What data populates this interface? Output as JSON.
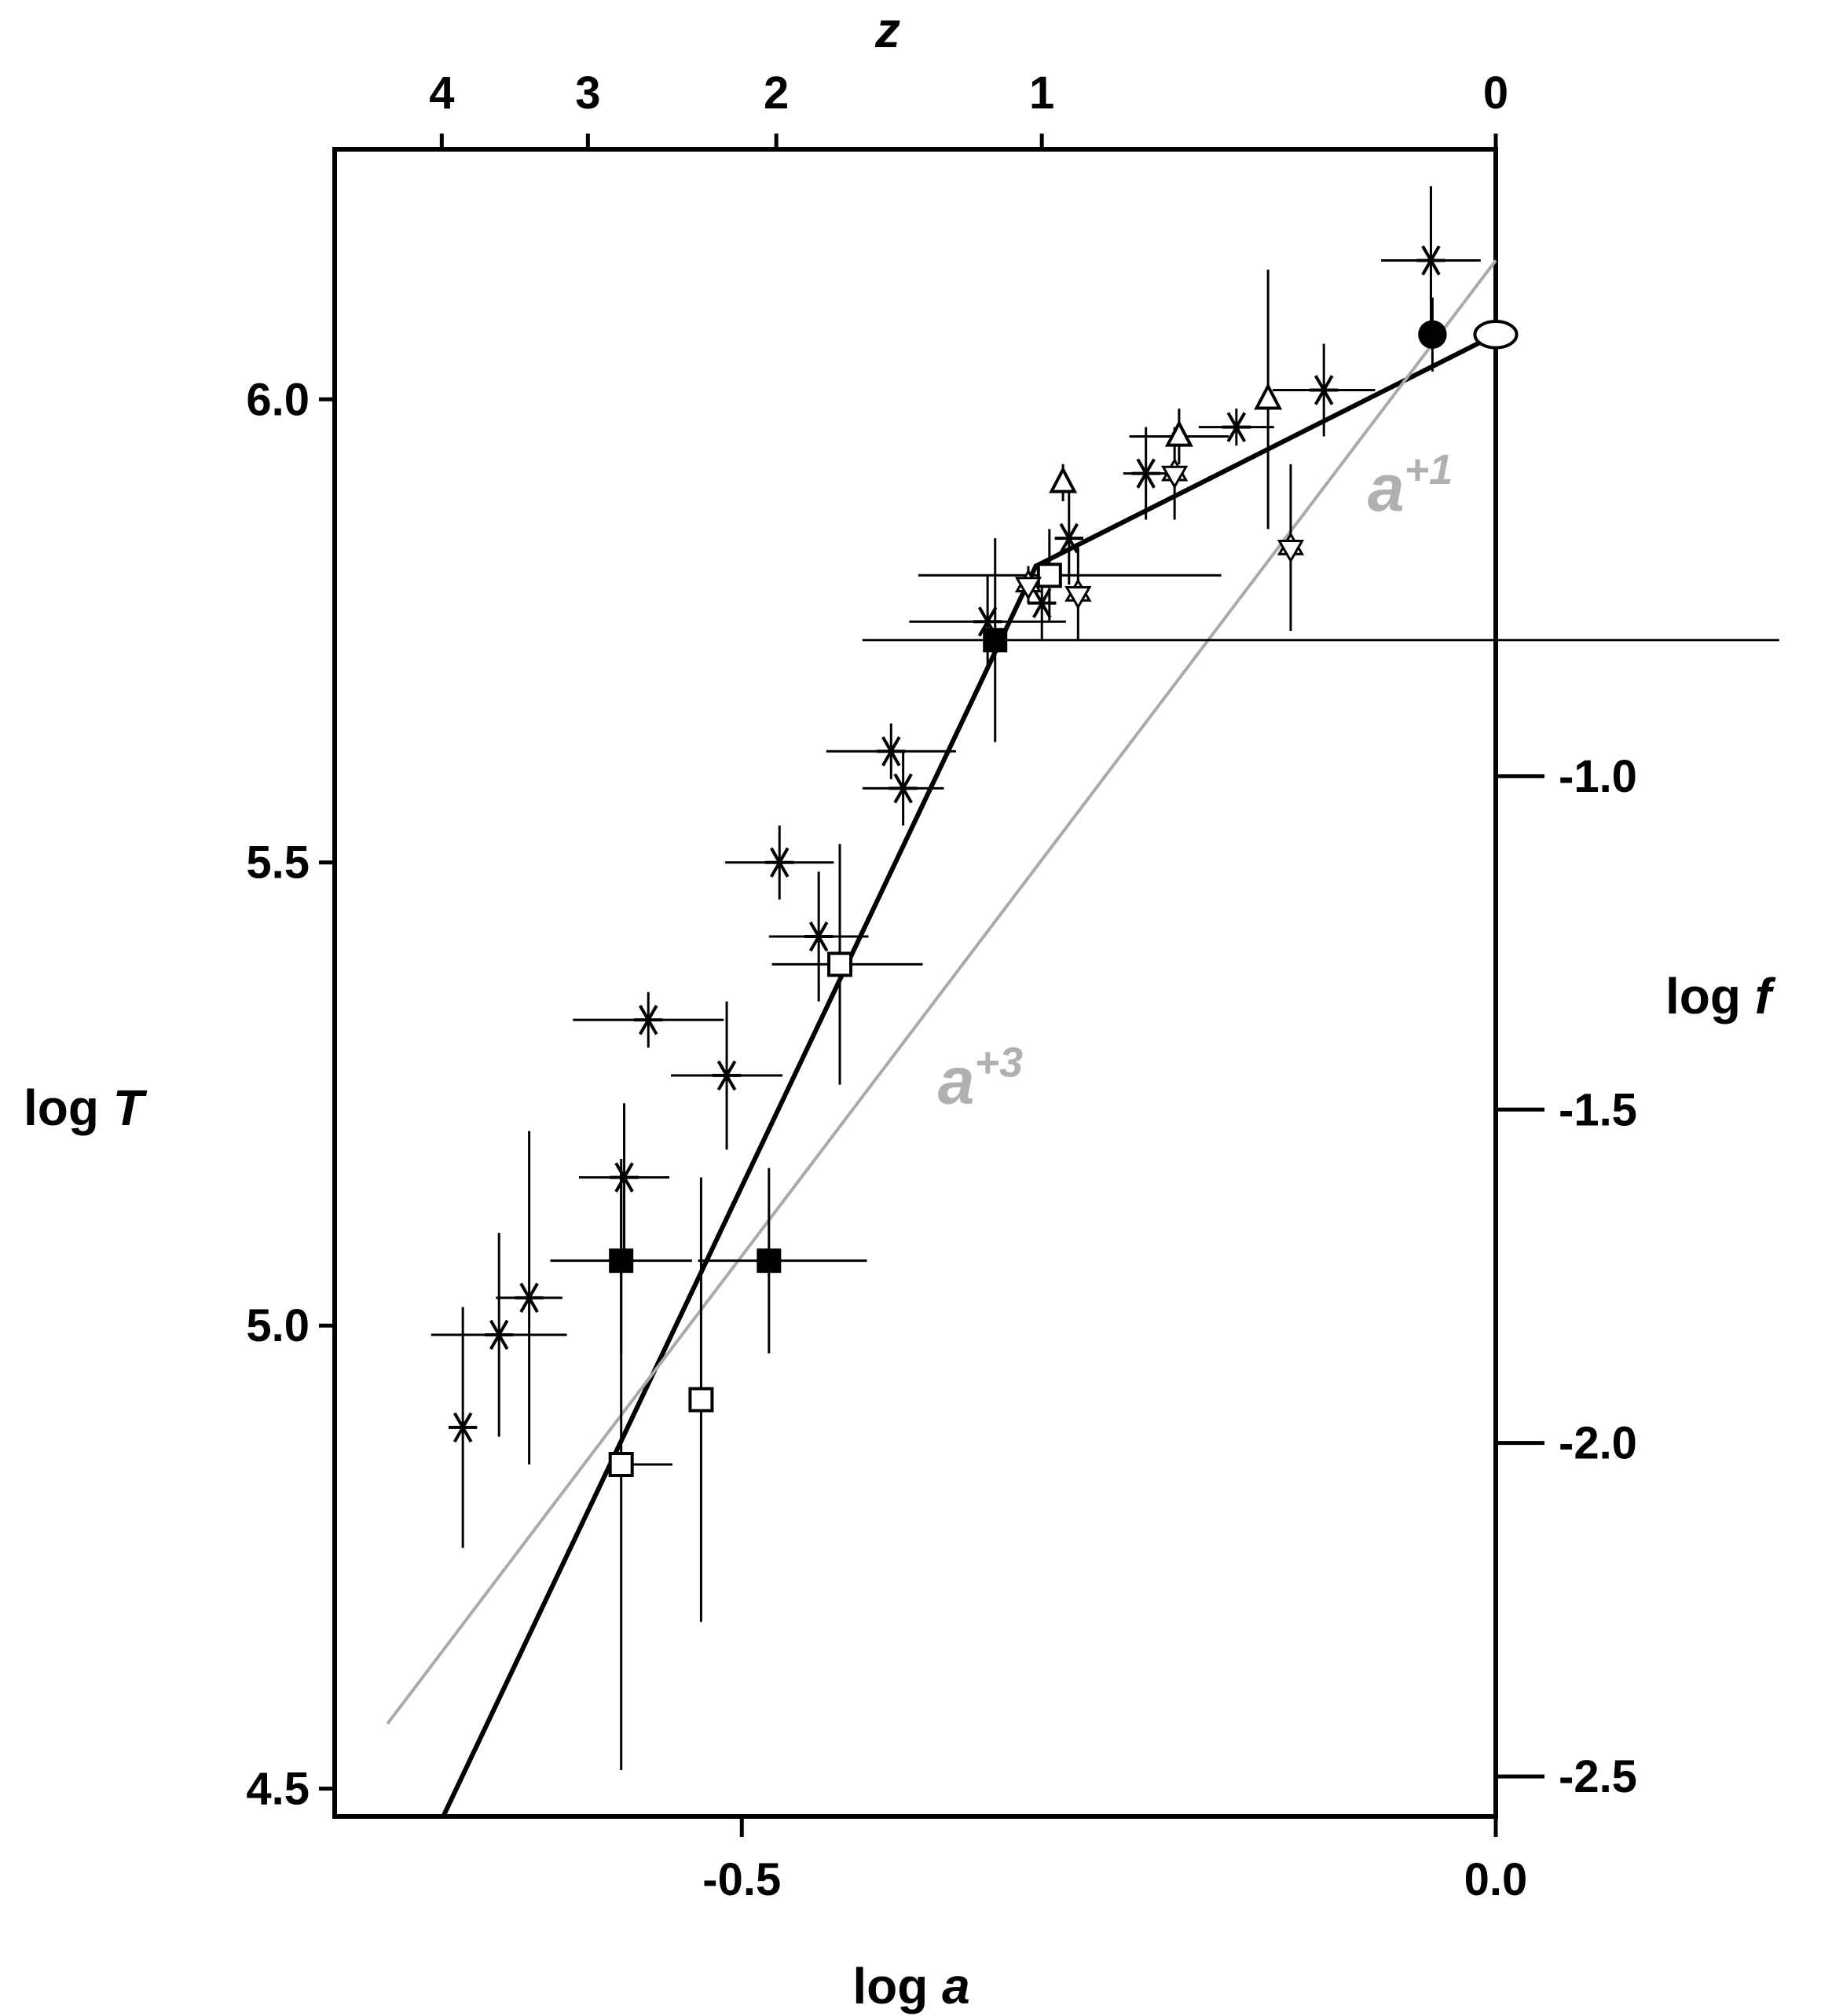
{
  "chart_data": {
    "type": "scatter",
    "title": "",
    "xlabel": {
      "text": "log ",
      "var": "a"
    },
    "ylabel": {
      "text": "log ",
      "var": "T"
    },
    "x2label": {
      "text": "",
      "var": "z"
    },
    "y2label": {
      "text": "log ",
      "var": "f"
    },
    "xlim": [
      -0.77,
      0.0
    ],
    "ylim": [
      4.47,
      6.27
    ],
    "y2lim": [
      -2.56,
      -0.06
    ],
    "x_ticks": [
      {
        "value": -0.5,
        "label": "-0.5"
      },
      {
        "value": 0.0,
        "label": "0.0"
      }
    ],
    "y_ticks": [
      {
        "value": 4.5,
        "label": "4.5"
      },
      {
        "value": 5.0,
        "label": "5.0"
      },
      {
        "value": 5.5,
        "label": "5.5"
      },
      {
        "value": 6.0,
        "label": "6.0"
      }
    ],
    "y2_ticks": [
      {
        "value": -1.0,
        "label": "-1.0"
      },
      {
        "value": -1.5,
        "label": "-1.5"
      },
      {
        "value": -2.0,
        "label": "-2.0"
      },
      {
        "value": -2.5,
        "label": "-2.5"
      }
    ],
    "x2_ticks": [
      {
        "value": 4,
        "label": "4"
      },
      {
        "value": 3,
        "label": "3"
      },
      {
        "value": 2,
        "label": "2"
      },
      {
        "value": 1,
        "label": "1"
      },
      {
        "value": 0,
        "label": "0"
      }
    ],
    "grid": false,
    "lines": [
      {
        "id": "black-fit",
        "color": "#000000",
        "points": [
          [
            -0.698,
            4.47
          ],
          [
            -0.305,
            5.82
          ],
          [
            0.0,
            6.07
          ]
        ]
      },
      {
        "id": "gray-fit",
        "color": "#aaaaaa",
        "points": [
          [
            -0.735,
            4.57
          ],
          [
            0.0,
            6.15
          ]
        ]
      }
    ],
    "annotations": [
      {
        "base": "a",
        "exp": "+3",
        "x": -0.37,
        "y": 5.24,
        "color": "#b0b0b0"
      },
      {
        "base": "a",
        "exp": "+1",
        "x": -0.085,
        "y": 5.88,
        "color": "#b0b0b0"
      }
    ],
    "series": [
      {
        "marker": "asterisk",
        "points": [
          {
            "x": -0.685,
            "y": 4.89,
            "xerr": [
              0,
              0
            ],
            "yerr": [
              0.13,
              0.13
            ]
          },
          {
            "x": -0.661,
            "y": 4.99,
            "xerr": [
              0.045,
              0.045
            ],
            "yerr": [
              0.11,
              0.11
            ]
          },
          {
            "x": -0.641,
            "y": 5.03,
            "xerr": [
              0.022,
              0.022
            ],
            "yerr": [
              0.18,
              0.18
            ]
          },
          {
            "x": -0.578,
            "y": 5.16,
            "xerr": [
              0.03,
              0.03
            ],
            "yerr": [
              0.08,
              0.08
            ]
          },
          {
            "x": -0.562,
            "y": 5.33,
            "xerr": [
              0.05,
              0.05
            ],
            "yerr": [
              0.03,
              0.03
            ]
          },
          {
            "x": -0.51,
            "y": 5.27,
            "xerr": [
              0.037,
              0.037
            ],
            "yerr": [
              0.08,
              0.08
            ]
          },
          {
            "x": -0.475,
            "y": 5.5,
            "xerr": [
              0.036,
              0.036
            ],
            "yerr": [
              0.04,
              0.04
            ]
          },
          {
            "x": -0.449,
            "y": 5.42,
            "xerr": [
              0.033,
              0.033
            ],
            "yerr": [
              0.07,
              0.07
            ]
          },
          {
            "x": -0.401,
            "y": 5.62,
            "xerr": [
              0.043,
              0.043
            ],
            "yerr": [
              0.03,
              0.03
            ]
          },
          {
            "x": -0.393,
            "y": 5.58,
            "xerr": [
              0.027,
              0.027
            ],
            "yerr": [
              0.04,
              0.04
            ]
          },
          {
            "x": -0.337,
            "y": 5.76,
            "xerr": [
              0.052,
              0.052
            ],
            "yerr": [
              0.05,
              0.05
            ]
          },
          {
            "x": -0.301,
            "y": 5.78,
            "xerr": [
              0,
              0
            ],
            "yerr": [
              0.04,
              0.04
            ]
          },
          {
            "x": -0.283,
            "y": 5.85,
            "xerr": [
              0,
              0
            ],
            "yerr": [
              0.05,
              0.05
            ]
          },
          {
            "x": -0.232,
            "y": 5.92,
            "xerr": [
              0.015,
              0.015
            ],
            "yerr": [
              0.05,
              0.05
            ]
          },
          {
            "x": -0.172,
            "y": 5.97,
            "xerr": [
              0.025,
              0.025
            ],
            "yerr": [
              0.02,
              0.02
            ]
          },
          {
            "x": -0.114,
            "y": 6.01,
            "xerr": [
              0.034,
              0.034
            ],
            "yerr": [
              0.05,
              0.05
            ]
          },
          {
            "x": -0.043,
            "y": 6.15,
            "xerr": [
              0.033,
              0.033
            ],
            "yerr": [
              0.08,
              0.08
            ]
          }
        ]
      },
      {
        "marker": "square-filled",
        "points": [
          {
            "x": -0.58,
            "y": 5.07,
            "xerr": [
              0.047,
              0.047
            ],
            "yerr": [
              0.1,
              0.1
            ]
          },
          {
            "x": -0.482,
            "y": 5.07,
            "xerr": [
              0.047,
              0.065
            ],
            "yerr": [
              0.1,
              0.1
            ]
          },
          {
            "x": -0.332,
            "y": 5.74,
            "xerr": [
              0.088,
              0.52
            ],
            "yerr": [
              0.11,
              0.11
            ]
          }
        ]
      },
      {
        "marker": "square-open",
        "points": [
          {
            "x": -0.58,
            "y": 4.85,
            "xerr": [
              0,
              0.034
            ],
            "yerr": [
              0.33,
              0.33
            ]
          },
          {
            "x": -0.527,
            "y": 4.92,
            "xerr": [
              0,
              0
            ],
            "yerr": [
              0.24,
              0.24
            ]
          },
          {
            "x": -0.435,
            "y": 5.39,
            "xerr": [
              0.045,
              0.055
            ],
            "yerr": [
              0.13,
              0.13
            ]
          },
          {
            "x": -0.296,
            "y": 5.81,
            "xerr": [
              0.087,
              0.114
            ],
            "yerr": [
              0.05,
              0.05
            ]
          }
        ]
      },
      {
        "marker": "star-open",
        "points": [
          {
            "x": -0.31,
            "y": 5.8,
            "xerr": [
              0,
              0
            ],
            "yerr": [
              0.02,
              0.02
            ]
          },
          {
            "x": -0.277,
            "y": 5.79,
            "xerr": [
              0,
              0
            ],
            "yerr": [
              0.05,
              0.05
            ]
          },
          {
            "x": -0.213,
            "y": 5.92,
            "xerr": [
              0,
              0
            ],
            "yerr": [
              0.05,
              0.05
            ]
          },
          {
            "x": -0.136,
            "y": 5.84,
            "xerr": [
              0,
              0
            ],
            "yerr": [
              0.09,
              0.09
            ]
          }
        ]
      },
      {
        "marker": "triangle-open",
        "points": [
          {
            "x": -0.287,
            "y": 5.91,
            "xerr": [
              0,
              0
            ],
            "yerr": [
              0.02,
              0.02
            ]
          },
          {
            "x": -0.21,
            "y": 5.96,
            "xerr": [
              0.033,
              0.033
            ],
            "yerr": [
              0.03,
              0.03
            ]
          },
          {
            "x": -0.151,
            "y": 6.0,
            "xerr": [
              0,
              0
            ],
            "yerr": [
              0.14,
              0.14
            ]
          }
        ]
      },
      {
        "marker": "circle-filled",
        "points": [
          {
            "x": -0.042,
            "y": 6.07,
            "xerr": [
              0,
              0
            ],
            "yerr": [
              0.04,
              0.04
            ]
          }
        ]
      },
      {
        "marker": "diamond-open",
        "points": [
          {
            "x": 0.0,
            "y": 6.07,
            "xerr": [
              0,
              0
            ],
            "yerr": [
              0.07,
              0.07
            ]
          }
        ]
      }
    ]
  }
}
